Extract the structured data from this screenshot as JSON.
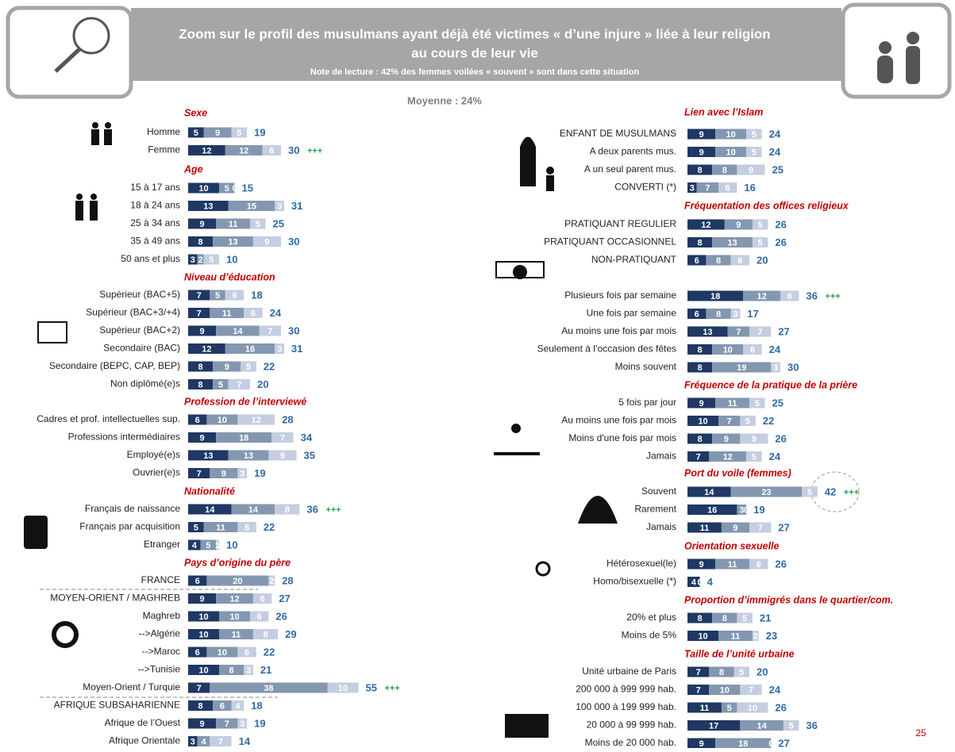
{
  "header": {
    "title_line1": "Zoom sur le profil des musulmans ayant déjà été victimes « d’une injure » liée à leur religion",
    "title_line2": "au cours de leur vie",
    "note": "Note de lecture : 42% des femmes voilées « souvent » sont dans cette situation"
  },
  "average": "Moyenne : 24%",
  "page_number": "25",
  "left": [
    {
      "title": "Sexe",
      "rows": [
        {
          "label": "Homme",
          "segments": [
            5,
            9,
            5
          ],
          "total": 19
        },
        {
          "label": "Femme",
          "segments": [
            12,
            12,
            6
          ],
          "total": 30,
          "flag": "+++"
        }
      ]
    },
    {
      "title": "Age",
      "rows": [
        {
          "label": "15 à 17 ans",
          "segments": [
            10,
            5,
            0
          ],
          "total": 15
        },
        {
          "label": "18 à 24 ans",
          "segments": [
            13,
            15,
            3
          ],
          "total": 31
        },
        {
          "label": "25 à 34 ans",
          "segments": [
            9,
            11,
            5
          ],
          "total": 25
        },
        {
          "label": "35 à 49 ans",
          "segments": [
            8,
            13,
            9
          ],
          "total": 30
        },
        {
          "label": "50 ans et plus",
          "segments": [
            3,
            2,
            5
          ],
          "total": 10
        }
      ]
    },
    {
      "title": "Niveau d’éducation",
      "rows": [
        {
          "label": "Supérieur (BAC+5)",
          "segments": [
            7,
            5,
            6
          ],
          "total": 18
        },
        {
          "label": "Supérieur (BAC+3/+4)",
          "segments": [
            7,
            11,
            6
          ],
          "total": 24
        },
        {
          "label": "Supérieur (BAC+2)",
          "segments": [
            9,
            14,
            7
          ],
          "total": 30
        },
        {
          "label": "Secondaire (BAC)",
          "segments": [
            12,
            16,
            3
          ],
          "total": 31
        },
        {
          "label": "Secondaire (BEPC, CAP, BEP)",
          "segments": [
            8,
            9,
            5
          ],
          "total": 22
        },
        {
          "label": "Non diplômé(e)s",
          "segments": [
            8,
            5,
            7
          ],
          "total": 20
        }
      ]
    },
    {
      "title": "Profession de l’interviewé",
      "rows": [
        {
          "label": "Cadres et prof. intellectuelles sup.",
          "segments": [
            6,
            10,
            12
          ],
          "total": 28
        },
        {
          "label": "Professions intermédiaires",
          "segments": [
            9,
            18,
            7
          ],
          "total": 34
        },
        {
          "label": "Employé(e)s",
          "segments": [
            13,
            13,
            9
          ],
          "total": 35
        },
        {
          "label": "Ouvrier(e)s",
          "segments": [
            7,
            9,
            3
          ],
          "total": 19
        }
      ]
    },
    {
      "title": "Nationalité",
      "rows": [
        {
          "label": "Français de naissance",
          "segments": [
            14,
            14,
            8
          ],
          "total": 36,
          "flag": "+++"
        },
        {
          "label": "Français par acquisition",
          "segments": [
            5,
            11,
            6
          ],
          "total": 22
        },
        {
          "label": "Etranger",
          "segments": [
            4,
            5,
            1
          ],
          "total": 10
        }
      ]
    },
    {
      "title": "Pays d’origine du père",
      "rows": [
        {
          "label": "FRANCE",
          "segments": [
            6,
            20,
            2
          ],
          "total": 28
        },
        {
          "label": "MOYEN-ORIENT / MAGHREB",
          "segments": [
            9,
            12,
            6
          ],
          "total": 27
        },
        {
          "label": "Maghreb",
          "segments": [
            10,
            10,
            6
          ],
          "total": 26
        },
        {
          "label": "-->Algérie",
          "segments": [
            10,
            11,
            8
          ],
          "total": 29
        },
        {
          "label": "-->Maroc",
          "segments": [
            6,
            10,
            6
          ],
          "total": 22
        },
        {
          "label": "-->Tunisie",
          "segments": [
            10,
            8,
            3
          ],
          "total": 21
        },
        {
          "label": "Moyen-Orient / Turquie",
          "segments": [
            7,
            38,
            10
          ],
          "total": 55,
          "flag": "+++"
        },
        {
          "label": "AFRIQUE SUBSAHARIENNE",
          "segments": [
            8,
            6,
            4
          ],
          "total": 18
        },
        {
          "label": "Afrique de l’Ouest",
          "segments": [
            9,
            7,
            3
          ],
          "total": 19
        },
        {
          "label": "Afrique Orientale",
          "segments": [
            3,
            4,
            7
          ],
          "total": 14
        }
      ]
    }
  ],
  "right": [
    {
      "title": "Lien avec l’Islam",
      "rows": [
        {
          "label": "ENFANT DE MUSULMANS",
          "segments": [
            9,
            10,
            5
          ],
          "total": 24
        },
        {
          "label": "A deux parents mus.",
          "segments": [
            9,
            10,
            5
          ],
          "total": 24
        },
        {
          "label": "A un seul parent mus.",
          "segments": [
            8,
            8,
            9
          ],
          "total": 25
        },
        {
          "label": "CONVERTI (*)",
          "segments": [
            3,
            7,
            6
          ],
          "total": 16
        }
      ]
    },
    {
      "title": "Fréquentation des offices religieux",
      "rows": [
        {
          "label": "PRATIQUANT REGULIER",
          "segments": [
            12,
            9,
            5
          ],
          "total": 26
        },
        {
          "label": "PRATIQUANT OCCASIONNEL",
          "segments": [
            8,
            13,
            5
          ],
          "total": 26
        },
        {
          "label": "NON-PRATIQUANT",
          "segments": [
            6,
            8,
            6
          ],
          "total": 20
        },
        {
          "label": "Plusieurs fois par semaine",
          "segments": [
            18,
            12,
            6
          ],
          "total": 36,
          "flag": "+++"
        },
        {
          "label": "Une fois par semaine",
          "segments": [
            6,
            8,
            3
          ],
          "total": 17
        },
        {
          "label": "Au moins une fois par mois",
          "segments": [
            13,
            7,
            7
          ],
          "total": 27
        },
        {
          "label": "Seulement à l’occasion des fêtes",
          "segments": [
            8,
            10,
            6
          ],
          "total": 24
        },
        {
          "label": "Moins souvent",
          "segments": [
            8,
            19,
            3
          ],
          "total": 30
        }
      ]
    },
    {
      "title": "Fréquence de la pratique de la prière",
      "rows": [
        {
          "label": "5 fois par jour",
          "segments": [
            9,
            11,
            5
          ],
          "total": 25
        },
        {
          "label": "Au moins une fois par mois",
          "segments": [
            10,
            7,
            5
          ],
          "total": 22
        },
        {
          "label": "Moins d'une fois par mois",
          "segments": [
            8,
            9,
            9
          ],
          "total": 26
        },
        {
          "label": "Jamais",
          "segments": [
            7,
            12,
            5
          ],
          "total": 24
        }
      ]
    },
    {
      "title": "Port du voile (femmes)",
      "rows": [
        {
          "label": "Souvent",
          "segments": [
            14,
            23,
            5
          ],
          "total": 42,
          "flag": "+++"
        },
        {
          "label": "Rarement",
          "segments": [
            16,
            3,
            0
          ],
          "total": 19
        },
        {
          "label": "Jamais",
          "segments": [
            11,
            9,
            7
          ],
          "total": 27
        }
      ]
    },
    {
      "title": "Orientation sexuelle",
      "rows": [
        {
          "label": "Hétérosexuel(le)",
          "segments": [
            9,
            11,
            6
          ],
          "total": 26
        },
        {
          "label": "Homo/bisexuelle (*)",
          "segments": [
            4,
            0,
            0
          ],
          "total": 4
        }
      ]
    },
    {
      "title": "Proportion d’immigrés dans le quartier/com.",
      "rows": [
        {
          "label": "20% et plus",
          "segments": [
            8,
            8,
            5
          ],
          "total": 21
        },
        {
          "label": "Moins de 5%",
          "segments": [
            10,
            11,
            2
          ],
          "total": 23
        }
      ]
    },
    {
      "title": "Taille de l’unité urbaine",
      "rows": [
        {
          "label": "Unité urbaine de Paris",
          "segments": [
            7,
            8,
            5
          ],
          "total": 20
        },
        {
          "label": "200 000 à 999 999 hab.",
          "segments": [
            7,
            10,
            7
          ],
          "total": 24
        },
        {
          "label": "100 000 à 199 999 hab.",
          "segments": [
            11,
            5,
            10
          ],
          "total": 26
        },
        {
          "label": "20 000 à 99 999 hab.",
          "segments": [
            17,
            14,
            5
          ],
          "total": 36
        },
        {
          "label": "Moins de 20 000 hab.",
          "segments": [
            9,
            18,
            0
          ],
          "total": 27
        }
      ]
    }
  ]
}
